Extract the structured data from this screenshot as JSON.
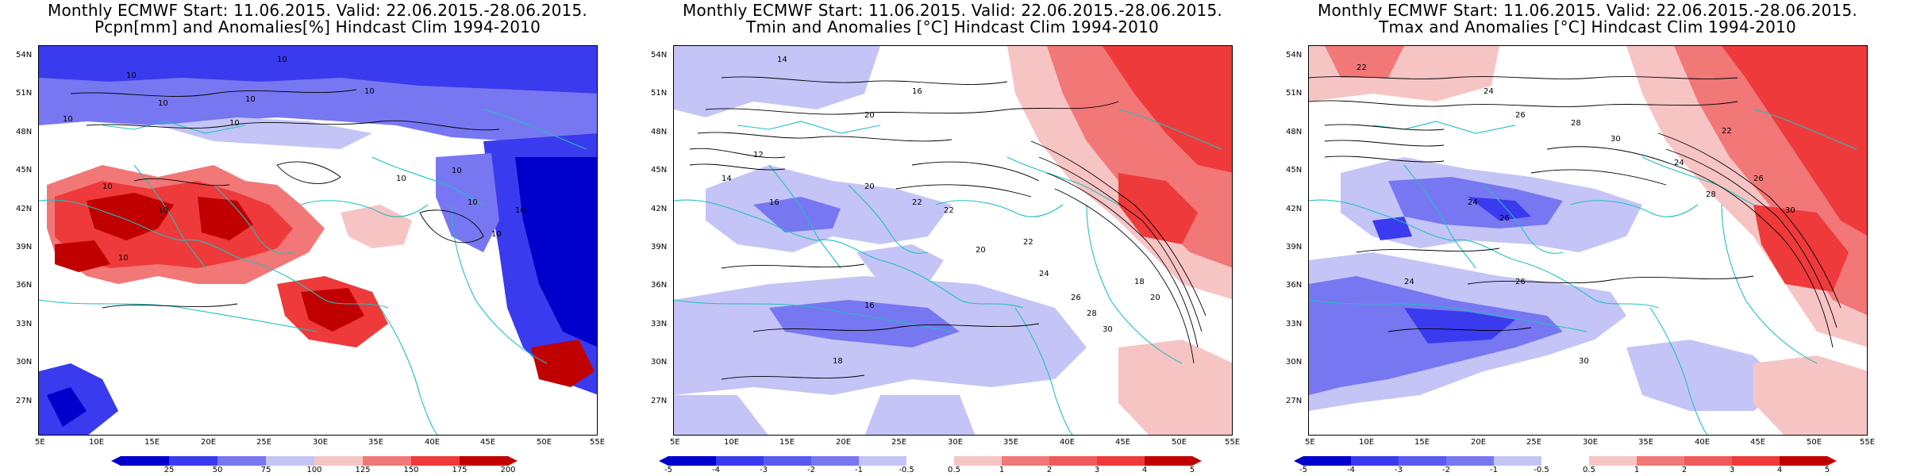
{
  "colors": {
    "deep_blue": "#0000cc",
    "blue": "#3a3aee",
    "mid_blue": "#7777f2",
    "light_blue": "#c4c4f7",
    "white": "#ffffff",
    "light_red": "#f7c4c4",
    "mid_red": "#f27777",
    "red": "#ee3a3a",
    "deep_red": "#c00000",
    "coast": "#20c0c0",
    "contour": "#000000"
  },
  "axes": {
    "lat_ticks": [
      "54N",
      "51N",
      "48N",
      "45N",
      "42N",
      "39N",
      "36N",
      "33N",
      "30N",
      "27N"
    ],
    "lon_ticks": [
      "5E",
      "10E",
      "15E",
      "20E",
      "25E",
      "30E",
      "35E",
      "40E",
      "45E",
      "50E",
      "55E"
    ],
    "lat_range": [
      24.5,
      55
    ],
    "lon_range": [
      5,
      55
    ]
  },
  "panels": [
    {
      "title_line1": "Monthly ECMWF Start: 11.06.2015. Valid: 22.06.2015.-28.06.2015.",
      "title_line2": "Pcpn[mm] and Anomalies[%] Hindcast Clim 1994-2010",
      "legend_labels": [
        "25",
        "50",
        "75",
        "100",
        "125",
        "150",
        "175",
        "200"
      ],
      "contour_labels": [
        "10",
        "10",
        "10",
        "10",
        "10",
        "10",
        "10",
        "10",
        "10",
        "10",
        "10",
        "10",
        "10",
        "10",
        "10"
      ]
    },
    {
      "title_line1": "Monthly ECMWF Start: 11.06.2015. Valid: 22.06.2015.-28.06.2015.",
      "title_line2": "Tmin and Anomalies [°C] Hindcast Clim 1994-2010",
      "legend_labels": [
        "-5",
        "-4",
        "-3",
        "-2",
        "-1",
        "-0.5",
        "0.5",
        "1",
        "2",
        "3",
        "4",
        "5"
      ],
      "contour_labels": [
        "14",
        "16",
        "20",
        "12",
        "14",
        "16",
        "20",
        "22",
        "22",
        "20",
        "22",
        "24",
        "26",
        "28",
        "30",
        "18",
        "20",
        "16",
        "18"
      ]
    },
    {
      "title_line1": "Monthly ECMWF Start: 11.06.2015. Valid: 22.06.2015.-28.06.2015.",
      "title_line2": "Tmax and Anomalies [°C] Hindcast Clim 1994-2010",
      "legend_labels": [
        "-5",
        "-4",
        "-3",
        "-2",
        "-1",
        "-0.5",
        "0.5",
        "1",
        "2",
        "3",
        "4",
        "5"
      ],
      "contour_labels": [
        "22",
        "24",
        "26",
        "28",
        "30",
        "22",
        "24",
        "26",
        "28",
        "30",
        "24",
        "26",
        "24",
        "26",
        "30"
      ]
    }
  ]
}
